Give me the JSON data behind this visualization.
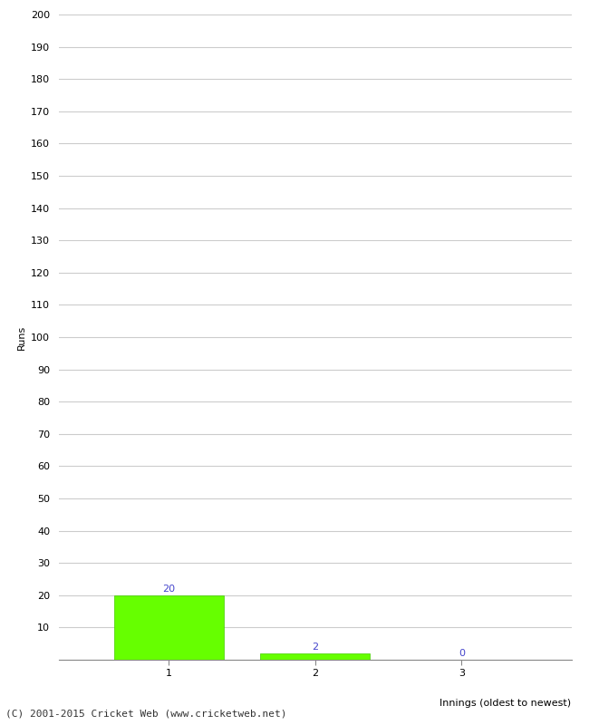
{
  "categories": [
    "1",
    "2",
    "3"
  ],
  "values": [
    20,
    2,
    0
  ],
  "bar_color": "#66ff00",
  "bar_edge_color": "#44cc00",
  "ylabel": "Runs",
  "xlabel": "Innings (oldest to newest)",
  "ylim": [
    0,
    200
  ],
  "yticks": [
    0,
    10,
    20,
    30,
    40,
    50,
    60,
    70,
    80,
    90,
    100,
    110,
    120,
    130,
    140,
    150,
    160,
    170,
    180,
    190,
    200
  ],
  "label_color": "#4444cc",
  "label_fontsize": 8,
  "tick_fontsize": 8,
  "xlabel_fontsize": 8,
  "ylabel_fontsize": 8,
  "footer_text": "(C) 2001-2015 Cricket Web (www.cricketweb.net)",
  "footer_fontsize": 8,
  "background_color": "#ffffff",
  "grid_color": "#cccccc"
}
